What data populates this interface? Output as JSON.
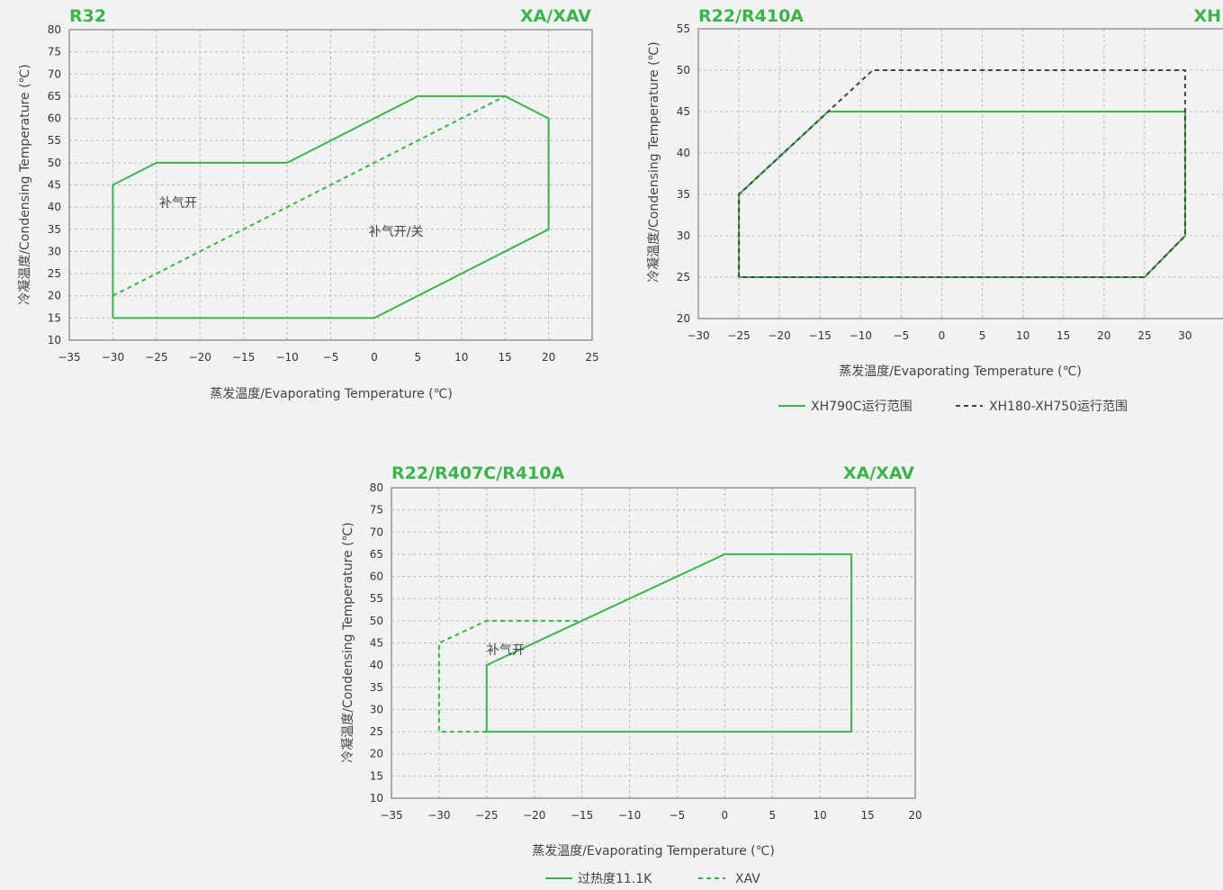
{
  "colors": {
    "green": "#3cb44b",
    "dark_dash": "#444444",
    "grid": "#b9b9b9",
    "frame": "#9a9a9a",
    "background": "#f1f2f2"
  },
  "chart_data": [
    {
      "id": "chart1",
      "type": "line",
      "title_left": "R32",
      "title_right": "XA/XAV",
      "xlabel": "蒸发温度/Evaporating Temperature (℃)",
      "ylabel": "冷凝温度/Condensing Temperature (℃)",
      "xlim": [
        -35,
        25
      ],
      "ylim": [
        10,
        80
      ],
      "x_ticks": [
        -35,
        -30,
        -25,
        -20,
        -15,
        -10,
        -5,
        0,
        5,
        10,
        15,
        20,
        25
      ],
      "y_ticks": [
        10,
        15,
        20,
        25,
        30,
        35,
        40,
        45,
        50,
        55,
        60,
        65,
        70,
        75,
        80
      ],
      "grid": true,
      "series": [
        {
          "style": "solid",
          "color": "#3cb44b",
          "points": [
            [
              -30,
              15
            ],
            [
              -30,
              45
            ],
            [
              -25,
              50
            ],
            [
              -10,
              50
            ],
            [
              5,
              65
            ],
            [
              15,
              65
            ],
            [
              20,
              60
            ],
            [
              20,
              35
            ],
            [
              0,
              15
            ],
            [
              -30,
              15
            ]
          ]
        },
        {
          "style": "dashed",
          "color": "#3cb44b",
          "points": [
            [
              -30,
              20
            ],
            [
              15,
              65
            ]
          ]
        }
      ],
      "annotations": [
        {
          "text": "补气开",
          "x": -22.5,
          "y": 40
        },
        {
          "text": "补气开/关",
          "x": 2.5,
          "y": 33.5
        }
      ],
      "legend": []
    },
    {
      "id": "chart2",
      "type": "line",
      "title_left": "R22/R410A",
      "title_right": "XH",
      "xlabel": "蒸发温度/Evaporating Temperature (℃)",
      "ylabel": "冷凝温度/Condensing Temperature (℃)",
      "xlim": [
        -30,
        35
      ],
      "ylim": [
        20,
        55
      ],
      "x_ticks": [
        -30,
        -25,
        -20,
        -15,
        -10,
        -5,
        0,
        5,
        10,
        15,
        20,
        25,
        30
      ],
      "y_ticks": [
        20,
        25,
        30,
        35,
        40,
        45,
        50,
        55
      ],
      "grid": true,
      "series": [
        {
          "name": "XH790C运行范围",
          "style": "solid",
          "color": "#3cb44b",
          "points": [
            [
              -25,
              25
            ],
            [
              -25,
              35
            ],
            [
              -14,
              45
            ],
            [
              30,
              45
            ],
            [
              30,
              30
            ],
            [
              25,
              25
            ],
            [
              -25,
              25
            ]
          ]
        },
        {
          "name": "XH180-XH750运行范围",
          "style": "dashed",
          "color": "#444444",
          "points": [
            [
              -25,
              25
            ],
            [
              -25,
              35
            ],
            [
              -8.5,
              50
            ],
            [
              30,
              50
            ],
            [
              30,
              30
            ],
            [
              25,
              25
            ],
            [
              -25,
              25
            ]
          ]
        }
      ],
      "annotations": [],
      "legend": [
        "XH790C运行范围",
        "XH180-XH750运行范围"
      ]
    },
    {
      "id": "chart3",
      "type": "line",
      "title_left": "R22/R407C/R410A",
      "title_right": "XA/XAV",
      "xlabel": "蒸发温度/Evaporating Temperature (℃)",
      "ylabel": "冷凝温度/Condensing Temperature (℃)",
      "xlim": [
        -35,
        20
      ],
      "ylim": [
        10,
        80
      ],
      "x_ticks": [
        -35,
        -30,
        -25,
        -20,
        -15,
        -10,
        -5,
        0,
        5,
        10,
        15,
        20
      ],
      "y_ticks": [
        10,
        15,
        20,
        25,
        30,
        35,
        40,
        45,
        50,
        55,
        60,
        65,
        70,
        75,
        80
      ],
      "grid": true,
      "series": [
        {
          "name": "过热度11.1K",
          "style": "solid",
          "color": "#3cb44b",
          "points": [
            [
              -25,
              25
            ],
            [
              -25,
              40
            ],
            [
              0,
              65
            ],
            [
              13.3,
              65
            ],
            [
              13.3,
              25
            ],
            [
              -25,
              25
            ]
          ]
        },
        {
          "name": "XAV",
          "style": "dashed",
          "color": "#3cb44b",
          "points": [
            [
              -25,
              25
            ],
            [
              -30,
              25
            ],
            [
              -30,
              45
            ],
            [
              -25,
              50
            ],
            [
              -15,
              50
            ]
          ]
        }
      ],
      "annotations": [
        {
          "text": "补气开",
          "x": -23,
          "y": 42.5
        }
      ],
      "legend": [
        "过热度11.1K",
        "XAV"
      ]
    }
  ]
}
